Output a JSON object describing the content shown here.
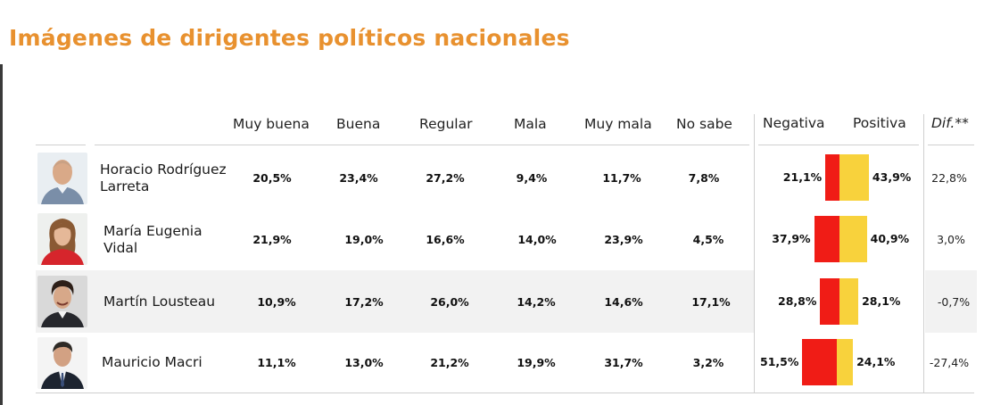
{
  "title": "Imágenes de dirigentes políticos nacionales",
  "columns": {
    "muy_buena": "Muy buena",
    "buena": "Buena",
    "regular": "Regular",
    "mala": "Mala",
    "muy_mala": "Muy mala",
    "no_sabe": "No sabe",
    "negativa": "Negativa",
    "positiva": "Positiva",
    "dif": "Dif.**"
  },
  "colors": {
    "title": "#e8912f",
    "negative_bar": "#f01c16",
    "positive_bar": "#f8d23c",
    "highlight_row": "#f2f2f2"
  },
  "rows": [
    {
      "name_line1": "Horacio Rodríguez",
      "name_line2": "Larreta",
      "muy_buena": "20,5%",
      "buena": "23,4%",
      "regular": "27,2%",
      "mala": "9,4%",
      "muy_mala": "11,7%",
      "no_sabe": "7,8%",
      "negativa": "21,1%",
      "positiva": "43,9%",
      "dif": "22,8%",
      "highlighted": false
    },
    {
      "name_line1": "María Eugenia",
      "name_line2": "Vidal",
      "muy_buena": "21,9%",
      "buena": "19,0%",
      "regular": "16,6%",
      "mala": "14,0%",
      "muy_mala": "23,9%",
      "no_sabe": "4,5%",
      "negativa": "37,9%",
      "positiva": "40,9%",
      "dif": "3,0%",
      "highlighted": false
    },
    {
      "name_line1": "Martín Lousteau",
      "name_line2": "",
      "muy_buena": "10,9%",
      "buena": "17,2%",
      "regular": "26,0%",
      "mala": "14,2%",
      "muy_mala": "14,6%",
      "no_sabe": "17,1%",
      "negativa": "28,8%",
      "positiva": "28,1%",
      "dif": "-0,7%",
      "highlighted": true
    },
    {
      "name_line1": "Mauricio Macri",
      "name_line2": "",
      "muy_buena": "11,1%",
      "buena": "13,0%",
      "regular": "21,2%",
      "mala": "19,9%",
      "muy_mala": "31,7%",
      "no_sabe": "3,2%",
      "negativa": "51,5%",
      "positiva": "24,1%",
      "dif": "-27,4%",
      "highlighted": false
    }
  ],
  "chart_data": {
    "type": "bar",
    "title": "Imágenes de dirigentes políticos nacionales",
    "categories": [
      "Horacio Rodríguez Larreta",
      "María Eugenia Vidal",
      "Martín Lousteau",
      "Mauricio Macri"
    ],
    "series": [
      {
        "name": "Negativa",
        "values": [
          21.1,
          37.9,
          28.8,
          51.5
        ]
      },
      {
        "name": "Positiva",
        "values": [
          43.9,
          40.9,
          28.1,
          24.1
        ]
      }
    ],
    "table_columns": [
      "Muy buena",
      "Buena",
      "Regular",
      "Mala",
      "Muy mala",
      "No sabe",
      "Negativa",
      "Positiva",
      "Dif.**"
    ],
    "table_values": [
      [
        20.5,
        23.4,
        27.2,
        9.4,
        11.7,
        7.8,
        21.1,
        43.9,
        22.8
      ],
      [
        21.9,
        19.0,
        16.6,
        14.0,
        23.9,
        4.5,
        37.9,
        40.9,
        3.0
      ],
      [
        10.9,
        17.2,
        26.0,
        14.2,
        14.6,
        17.1,
        28.8,
        28.1,
        -0.7
      ],
      [
        11.1,
        13.0,
        21.2,
        19.9,
        31.7,
        3.2,
        51.5,
        24.1,
        -27.4
      ]
    ],
    "diverging_bar_orientation": "horizontal, negative left of center, positive right"
  }
}
